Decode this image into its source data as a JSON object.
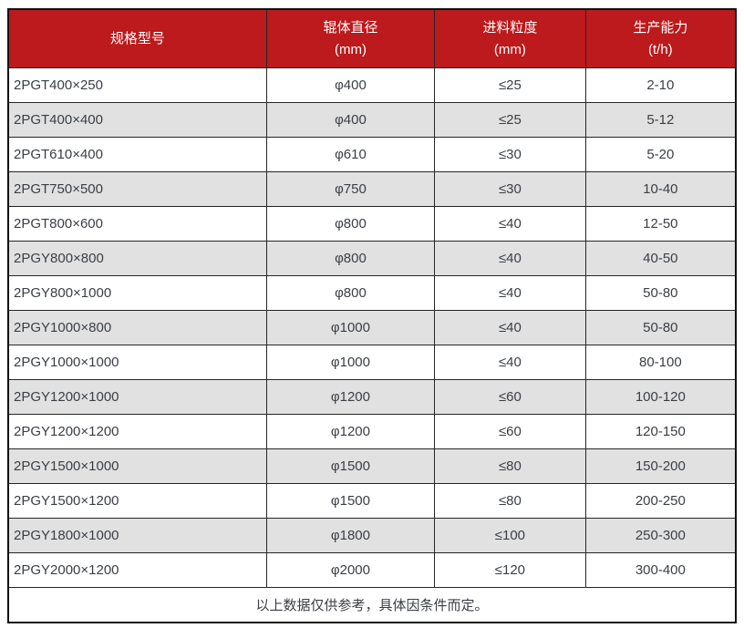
{
  "table": {
    "columns": [
      {
        "label": "规格型号",
        "unit": ""
      },
      {
        "label": "辊体直径",
        "unit": "(mm)"
      },
      {
        "label": "进料粒度",
        "unit": "(mm)"
      },
      {
        "label": "生产能力",
        "unit": "(t/h)"
      }
    ],
    "rows": [
      [
        "2PGT400×250",
        "φ400",
        "≤25",
        "2-10"
      ],
      [
        "2PGT400×400",
        "φ400",
        "≤25",
        "5-12"
      ],
      [
        "2PGT610×400",
        "φ610",
        "≤30",
        "5-20"
      ],
      [
        "2PGT750×500",
        "φ750",
        "≤30",
        "10-40"
      ],
      [
        "2PGT800×600",
        "φ800",
        "≤40",
        "12-50"
      ],
      [
        "2PGY800×800",
        "φ800",
        "≤40",
        "40-50"
      ],
      [
        "2PGY800×1000",
        "φ800",
        "≤40",
        "50-80"
      ],
      [
        "2PGY1000×800",
        "φ1000",
        "≤40",
        "50-80"
      ],
      [
        "2PGY1000×1000",
        "φ1000",
        "≤40",
        "80-100"
      ],
      [
        "2PGY1200×1000",
        "φ1200",
        "≤60",
        "100-120"
      ],
      [
        "2PGY1200×1200",
        "φ1200",
        "≤60",
        "120-150"
      ],
      [
        "2PGY1500×1000",
        "φ1500",
        "≤80",
        "150-200"
      ],
      [
        "2PGY1500×1200",
        "φ1500",
        "≤80",
        "200-250"
      ],
      [
        "2PGY1800×1000",
        "φ1800",
        "≤100",
        "250-300"
      ],
      [
        "2PGY2000×1200",
        "φ2000",
        "≤120",
        "300-400"
      ]
    ],
    "cell_names": [
      "model-cell",
      "roller-diameter-cell",
      "feed-size-cell",
      "capacity-cell"
    ],
    "footer_note": "以上数据仅供参考，具体因条件而定。"
  },
  "colors": {
    "header_bg": "#bc1a1c",
    "header_text": "#ffffff",
    "row_alt_bg": "#e1e1e1",
    "border": "#262626",
    "text": "#3a3f45"
  }
}
